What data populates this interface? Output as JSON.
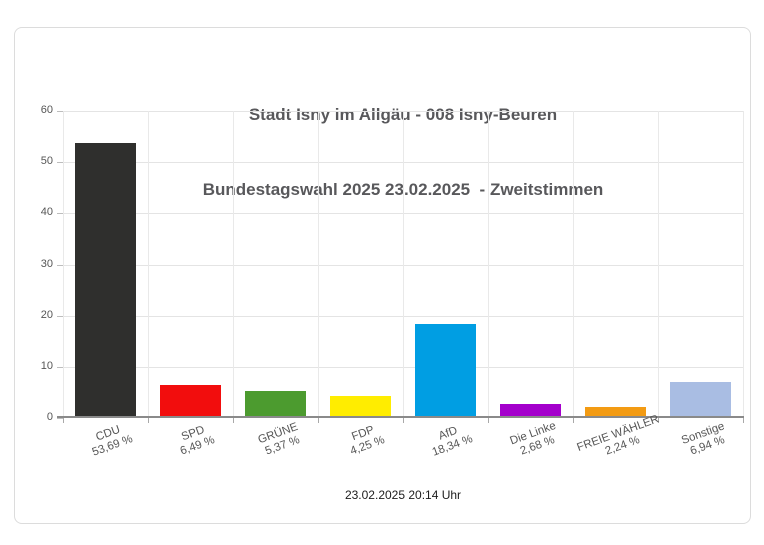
{
  "chart_data": {
    "type": "bar",
    "title": "Stadt Isny im Allgäu - 008 Isny-Beuren",
    "subtitle": "Bundestagswahl 2025 23.02.2025  - Zweitstimmen",
    "xlabel": "",
    "ylabel": "",
    "ylim": [
      0,
      60
    ],
    "yticks": [
      0,
      10,
      20,
      30,
      40,
      50,
      60
    ],
    "grid": "horizontal-and-vertical",
    "legend": "none",
    "categories": [
      "CDU",
      "SPD",
      "GRÜNE",
      "FDP",
      "AfD",
      "Die Linke",
      "FREIE WÄHLER",
      "Sonstige"
    ],
    "values": [
      53.69,
      6.49,
      5.37,
      4.25,
      18.34,
      2.68,
      2.24,
      6.94
    ],
    "value_labels": [
      "53,69 %",
      "6,49 %",
      "5,37 %",
      "4,25 %",
      "18,34 %",
      "2,68 %",
      "2,24 %",
      "6,94 %"
    ],
    "colors": [
      "#2f2f2d",
      "#f20d0d",
      "#4c9b2f",
      "#ffed00",
      "#009ee3",
      "#a400cc",
      "#f39b13",
      "#a9bde3"
    ],
    "slugs": [
      "cdu",
      "spd",
      "gruene",
      "fdp",
      "afd",
      "die-linke",
      "freie-waehler",
      "sonstige"
    ]
  },
  "footer": {
    "timestamp": "23.02.2025 20:14 Uhr"
  }
}
